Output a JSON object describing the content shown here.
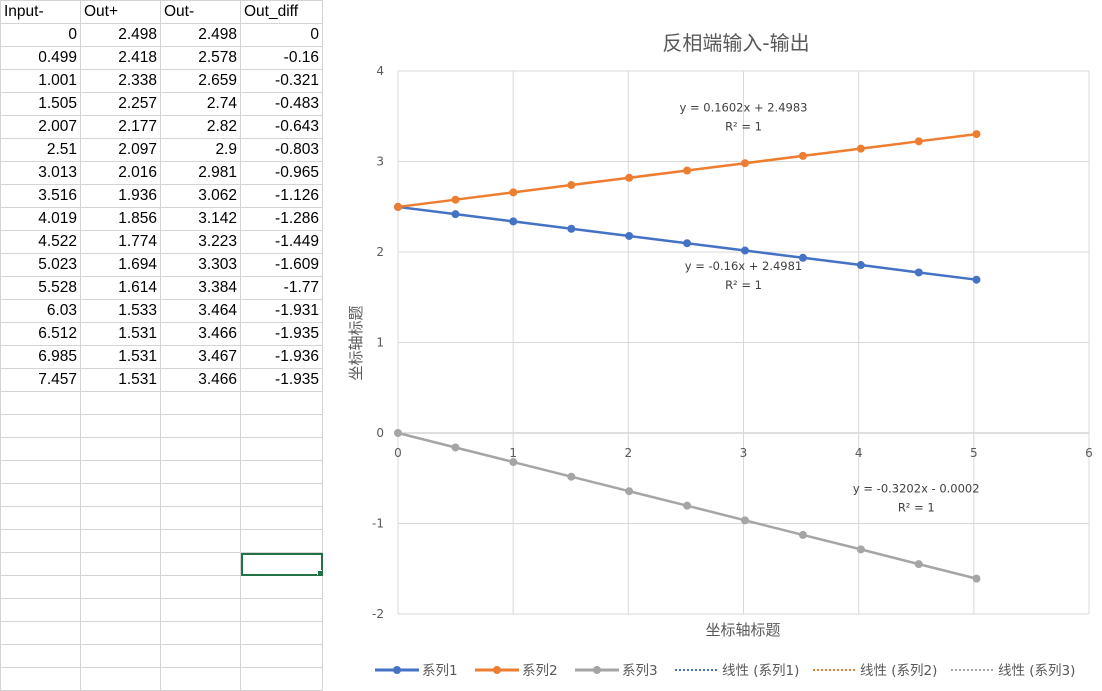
{
  "sheet": {
    "headers": [
      "Input-",
      "Out+",
      "Out-",
      "Out_diff"
    ],
    "rows": [
      [
        "0",
        "2.498",
        "2.498",
        "0"
      ],
      [
        "0.499",
        "2.418",
        "2.578",
        "-0.16"
      ],
      [
        "1.001",
        "2.338",
        "2.659",
        "-0.321"
      ],
      [
        "1.505",
        "2.257",
        "2.74",
        "-0.483"
      ],
      [
        "2.007",
        "2.177",
        "2.82",
        "-0.643"
      ],
      [
        "2.51",
        "2.097",
        "2.9",
        "-0.803"
      ],
      [
        "3.013",
        "2.016",
        "2.981",
        "-0.965"
      ],
      [
        "3.516",
        "1.936",
        "3.062",
        "-1.126"
      ],
      [
        "4.019",
        "1.856",
        "3.142",
        "-1.286"
      ],
      [
        "4.522",
        "1.774",
        "3.223",
        "-1.449"
      ],
      [
        "5.023",
        "1.694",
        "3.303",
        "-1.609"
      ],
      [
        "5.528",
        "1.614",
        "3.384",
        "-1.77"
      ],
      [
        "6.03",
        "1.533",
        "3.464",
        "-1.931"
      ],
      [
        "6.512",
        "1.531",
        "3.466",
        "-1.935"
      ],
      [
        "6.985",
        "1.531",
        "3.467",
        "-1.936"
      ],
      [
        "7.457",
        "1.531",
        "3.466",
        "-1.935"
      ]
    ],
    "empty_rows": 13,
    "selected_empty_row": 7,
    "selected_col": 3,
    "grid_color": "#d4d4d4",
    "selection_color": "#217346"
  },
  "chart_data": {
    "type": "scatter",
    "title": "反相端输入-输出",
    "xlabel": "坐标轴标题",
    "ylabel": "坐标轴标题",
    "xlim": [
      0,
      6
    ],
    "ylim": [
      -2,
      4
    ],
    "x_ticks": [
      "0",
      "1",
      "2",
      "3",
      "4",
      "5",
      "6"
    ],
    "y_ticks": [
      "-2",
      "-1",
      "0",
      "1",
      "2",
      "3",
      "4"
    ],
    "grid": true,
    "legend_position": "bottom",
    "x": [
      0,
      0.499,
      1.001,
      1.505,
      2.007,
      2.51,
      3.013,
      3.516,
      4.019,
      4.522,
      5.023
    ],
    "series": [
      {
        "name": "系列1",
        "color": "#4472c4",
        "values": [
          2.498,
          2.418,
          2.338,
          2.257,
          2.177,
          2.097,
          2.016,
          1.936,
          1.856,
          1.774,
          1.694
        ]
      },
      {
        "name": "系列2",
        "color": "#ed7d31",
        "values": [
          2.498,
          2.578,
          2.659,
          2.74,
          2.82,
          2.9,
          2.981,
          3.062,
          3.142,
          3.223,
          3.303
        ]
      },
      {
        "name": "系列3",
        "color": "#a5a5a5",
        "values": [
          0,
          -0.16,
          -0.321,
          -0.483,
          -0.643,
          -0.803,
          -0.965,
          -1.126,
          -1.286,
          -1.449,
          -1.609
        ]
      }
    ],
    "trendlines": [
      {
        "name": "线性 (系列1)",
        "series": "系列1",
        "color": "#4472c4",
        "slope": -0.16,
        "intercept": 2.4981,
        "equation": "y = -0.16x + 2.4981",
        "r2": "R² = 1"
      },
      {
        "name": "线性 (系列2)",
        "series": "系列2",
        "color": "#ed7d31",
        "slope": 0.1602,
        "intercept": 2.4983,
        "equation": "y = 0.1602x + 2.4983",
        "r2": "R² = 1"
      },
      {
        "name": "线性 (系列3)",
        "series": "系列3",
        "color": "#a5a5a5",
        "slope": -0.3202,
        "intercept": -0.0002,
        "equation": "y = -0.3202x - 0.0002",
        "r2": "R² = 1"
      }
    ]
  }
}
